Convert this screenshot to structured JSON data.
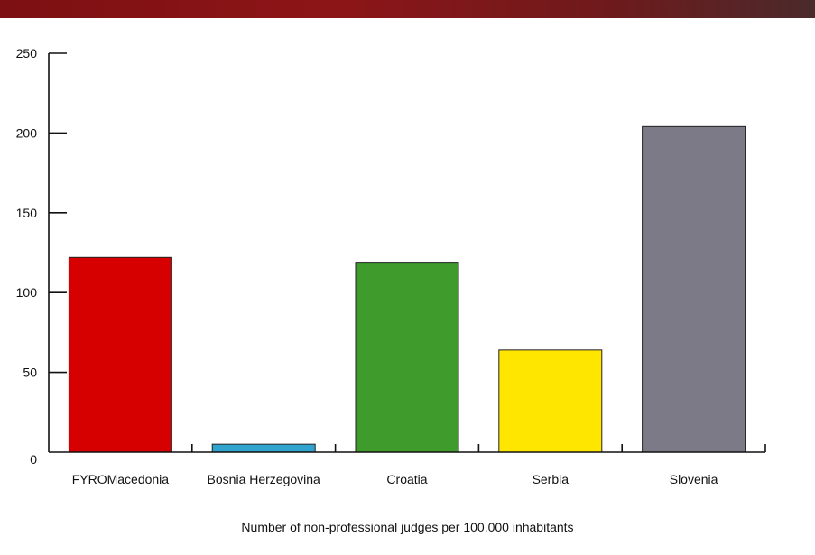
{
  "chart_data": {
    "type": "bar",
    "categories": [
      "FYROMacedonia",
      "Bosnia Herzegovina",
      "Croatia",
      "Serbia",
      "Slovenia"
    ],
    "values": [
      122,
      5,
      119,
      64,
      204
    ],
    "colors": [
      "#d60000",
      "#2ea3cd",
      "#3e9b2c",
      "#ffe600",
      "#7d7a87"
    ],
    "xlabel": "Number of non-professional judges per 100.000 inhabitants",
    "ylabel": "",
    "ylim": [
      0,
      250
    ],
    "yticks": [
      0,
      50,
      100,
      150,
      200,
      250
    ],
    "grid": false,
    "legend": "none"
  },
  "header": {
    "bar_color": "#8a1517"
  }
}
